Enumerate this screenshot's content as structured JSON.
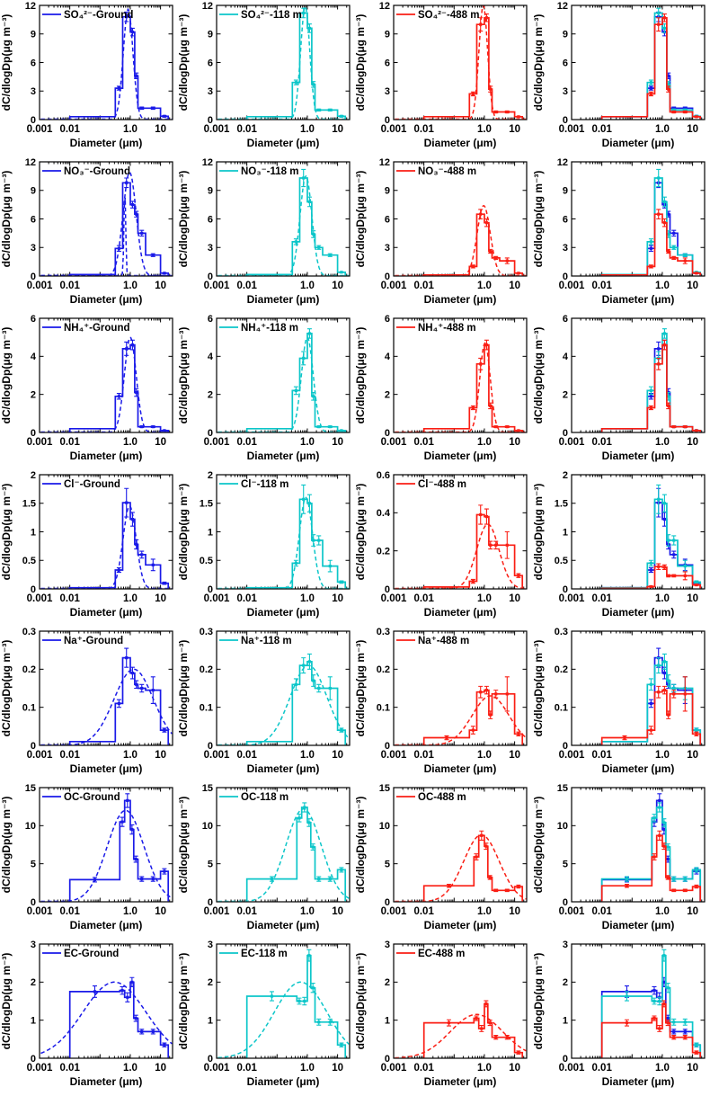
{
  "page": {
    "background": "#ffffff"
  },
  "chart_data": {
    "type": "line",
    "subtype": "size-distribution-histogram-grid",
    "grid": {
      "rows": 7,
      "cols": 4
    },
    "legend_position": "top-left-inside",
    "gridlines": false,
    "xlabel": "Diameter (μm)",
    "ylabel": "dC/dlogDp(μg m⁻³)",
    "x": {
      "scale": "log",
      "lim": [
        0.001,
        25
      ],
      "ticks": [
        {
          "v": 0.001,
          "t": "0.001"
        },
        {
          "v": 0.01,
          "t": "0.01"
        },
        {
          "v": 1,
          "t": "1.0"
        },
        {
          "v": 10,
          "t": "10"
        }
      ]
    },
    "colors": {
      "ground": "#1A1AE8",
      "h118": "#0CC6C9",
      "h488": "#FA1E14"
    },
    "col_keys": [
      "ground",
      "118m",
      "488m",
      "combined"
    ],
    "rows": [
      {
        "species": "SO₄²⁻",
        "key": "so4",
        "ylim": [
          0,
          12
        ],
        "yticks": [
          [
            0,
            "0"
          ],
          [
            3,
            "3"
          ],
          [
            6,
            "6"
          ],
          [
            9,
            "9"
          ],
          [
            12,
            "12"
          ]
        ],
        "edges": [
          0.01,
          0.32,
          0.56,
          1.0,
          1.4,
          1.8,
          3.2,
          10,
          18
        ],
        "panels": [
          {
            "legend": "SO₄²⁻-Ground",
            "color": "#1A1AE8",
            "values": [
              0.3,
              3.3,
              10.8,
              9.2,
              4.6,
              1.2,
              1.2,
              0.35
            ],
            "err": [
              0,
              0.2,
              0.5,
              0.4,
              0.3,
              0.12,
              0.12,
              0.08
            ],
            "fit": [
              {
                "px": 0.85,
                "py": 11.6,
                "s": 0.37
              }
            ]
          },
          {
            "legend": "SO₄²⁻-118 m",
            "color": "#0CC6C9",
            "values": [
              0.3,
              3.9,
              11.2,
              9.6,
              3.7,
              1.0,
              1.0,
              0.35
            ],
            "err": [
              0,
              0.25,
              0.5,
              0.45,
              0.3,
              0.1,
              0.1,
              0.08
            ],
            "fit": [
              {
                "px": 0.85,
                "py": 11.9,
                "s": 0.35
              }
            ]
          },
          {
            "legend": "SO₄²⁻-488 m",
            "color": "#FA1E14",
            "values": [
              0.3,
              2.7,
              10.0,
              10.7,
              3.2,
              0.8,
              0.8,
              0.3
            ],
            "err": [
              0,
              0.2,
              0.7,
              0.4,
              0.3,
              0.1,
              0.1,
              0.05
            ],
            "fit": [
              {
                "px": 0.92,
                "py": 12.0,
                "s": 0.33
              }
            ]
          }
        ]
      },
      {
        "species": "NO₃⁻",
        "key": "no3",
        "ylim": [
          0,
          12
        ],
        "yticks": [
          [
            0,
            "0"
          ],
          [
            3,
            "3"
          ],
          [
            6,
            "6"
          ],
          [
            9,
            "9"
          ],
          [
            12,
            "12"
          ]
        ],
        "edges": [
          0.01,
          0.32,
          0.56,
          1.0,
          1.4,
          1.8,
          3.2,
          10,
          18
        ],
        "panels": [
          {
            "legend": "NO₃⁻-Ground",
            "color": "#1A1AE8",
            "values": [
              0.15,
              2.9,
              9.8,
              7.5,
              6.5,
              4.5,
              2.2,
              0.3
            ],
            "err": [
              0,
              0.3,
              0.5,
              0.35,
              0.3,
              0.3,
              0.15,
              0.05
            ],
            "fit": [
              {
                "px": 0.66,
                "py": 8.8,
                "s": 0.07
              },
              {
                "px": 0.95,
                "py": 10.9,
                "s": 0.5
              }
            ]
          },
          {
            "legend": "NO₃⁻-118 m",
            "color": "#0CC6C9",
            "values": [
              0.15,
              3.6,
              10.3,
              7.8,
              4.4,
              3.0,
              2.2,
              0.4
            ],
            "err": [
              0,
              0.3,
              0.9,
              0.5,
              0.35,
              0.2,
              0.15,
              0.05
            ],
            "fit": [
              {
                "px": 0.9,
                "py": 10.5,
                "s": 0.45
              }
            ]
          },
          {
            "legend": "NO₃⁻-488 m",
            "color": "#FA1E14",
            "values": [
              0.1,
              1.0,
              6.5,
              5.6,
              2.6,
              1.9,
              1.6,
              0.3
            ],
            "err": [
              0,
              0.15,
              0.5,
              0.4,
              0.2,
              0.15,
              0.3,
              0.05
            ],
            "fit": [
              {
                "px": 0.95,
                "py": 7.4,
                "s": 0.5
              }
            ]
          }
        ]
      },
      {
        "species": "NH₄⁺",
        "key": "nh4",
        "ylim": [
          0,
          6
        ],
        "yticks": [
          [
            0,
            "0"
          ],
          [
            2,
            "2"
          ],
          [
            4,
            "4"
          ],
          [
            6,
            "6"
          ]
        ],
        "edges": [
          0.01,
          0.32,
          0.56,
          1.0,
          1.4,
          1.8,
          3.2,
          10,
          18
        ],
        "panels": [
          {
            "legend": "NH₄⁺-Ground",
            "color": "#1A1AE8",
            "values": [
              0.2,
              1.9,
              4.4,
              4.6,
              2.1,
              0.3,
              0.3,
              0.1
            ],
            "err": [
              0,
              0.15,
              0.35,
              0.25,
              0.2,
              0.04,
              0.04,
              0.02
            ],
            "fit": [
              {
                "px": 1.0,
                "py": 5.0,
                "s": 0.45
              }
            ]
          },
          {
            "legend": "NH₄⁺-118 m",
            "color": "#0CC6C9",
            "values": [
              0.2,
              2.2,
              3.9,
              5.2,
              1.9,
              0.3,
              0.3,
              0.1
            ],
            "err": [
              0,
              0.2,
              0.35,
              0.25,
              0.2,
              0.04,
              0.04,
              0.02
            ],
            "fit": [
              {
                "px": 1.0,
                "py": 5.0,
                "s": 0.45
              }
            ]
          },
          {
            "legend": "NH₄⁺-488 m",
            "color": "#FA1E14",
            "values": [
              0.2,
              1.3,
              3.6,
              4.6,
              1.4,
              0.3,
              0.3,
              0.1
            ],
            "err": [
              0,
              0.1,
              0.3,
              0.25,
              0.15,
              0.04,
              0.04,
              0.02
            ],
            "fit": [
              {
                "px": 1.05,
                "py": 4.7,
                "s": 0.4
              }
            ]
          }
        ]
      },
      {
        "species": "Cl⁻",
        "key": "cl",
        "ylim": [
          0,
          2
        ],
        "yticks": [
          [
            0,
            "0"
          ],
          [
            0.5,
            "0.5"
          ],
          [
            1,
            "1"
          ],
          [
            1.5,
            "1.5"
          ],
          [
            2,
            "2"
          ]
        ],
        "edges": [
          0.01,
          0.32,
          0.56,
          1.0,
          1.4,
          1.8,
          3.2,
          10,
          18
        ],
        "panels": [
          {
            "legend": "Cl⁻-Ground",
            "color": "#1A1AE8",
            "values": [
              0.02,
              0.33,
              1.51,
              1.22,
              0.78,
              0.6,
              0.42,
              0.1
            ],
            "err": [
              0,
              0.04,
              0.25,
              0.12,
              0.08,
              0.06,
              0.1,
              0.02
            ],
            "fit": [
              {
                "px": 0.95,
                "py": 1.45,
                "s": 0.5
              }
            ]
          },
          {
            "legend": "Cl⁻-118 m",
            "color": "#0CC6C9",
            "values": [
              0.02,
              0.45,
              1.57,
              1.5,
              0.85,
              0.85,
              0.4,
              0.12
            ],
            "err": [
              0,
              0.05,
              0.25,
              0.15,
              0.1,
              0.08,
              0.1,
              0.02
            ],
            "fit": [
              {
                "px": 0.9,
                "py": 1.6,
                "s": 0.5
              }
            ]
          },
          {
            "legend": "Cl⁻-488 m",
            "color": "#FA1E14",
            "ylim": [
              0,
              0.6
            ],
            "yticks": [
              [
                0,
                "0"
              ],
              [
                0.2,
                "0.2"
              ],
              [
                0.4,
                "0.4"
              ],
              [
                0.6,
                "0.6"
              ]
            ],
            "values": [
              0.01,
              0.04,
              0.39,
              0.38,
              0.23,
              0.23,
              0.23,
              0.07
            ],
            "err": [
              0,
              0.01,
              0.05,
              0.04,
              0.02,
              0.02,
              0.07,
              0.01
            ],
            "fit": [
              {
                "px": 1.3,
                "py": 0.34,
                "s": 0.85
              }
            ]
          }
        ]
      },
      {
        "species": "Na⁺",
        "key": "na",
        "ylim": [
          0,
          0.3
        ],
        "yticks": [
          [
            0,
            "0"
          ],
          [
            0.1,
            "0.1"
          ],
          [
            0.2,
            "0.2"
          ],
          [
            0.3,
            "0.3"
          ]
        ],
        "edges": [
          0.01,
          0.32,
          0.56,
          1.0,
          1.4,
          1.8,
          3.2,
          10,
          18
        ],
        "panels": [
          {
            "legend": "Na⁺-Ground",
            "color": "#1A1AE8",
            "values": [
              0.01,
              0.11,
              0.23,
              0.19,
              0.16,
              0.15,
              0.145,
              0.04
            ],
            "err": [
              0,
              0.01,
              0.025,
              0.015,
              0.01,
              0.01,
              0.035,
              0.005
            ],
            "fit": [
              {
                "px": 1.3,
                "py": 0.2,
                "s": 1.5
              }
            ]
          },
          {
            "legend": "Na⁺-118 m",
            "color": "#0CC6C9",
            "values": [
              0.01,
              0.16,
              0.21,
              0.22,
              0.17,
              0.15,
              0.15,
              0.04
            ],
            "err": [
              0,
              0.015,
              0.02,
              0.02,
              0.015,
              0.01,
              0.03,
              0.005
            ],
            "fit": [
              {
                "px": 1.1,
                "py": 0.21,
                "s": 1.4
              }
            ]
          },
          {
            "legend": "Na⁺-488 m",
            "color": "#FA1E14",
            "values": [
              0.02,
              0.04,
              0.14,
              0.145,
              0.08,
              0.135,
              0.135,
              0.03
            ],
            "err": [
              0.005,
              0.01,
              0.015,
              0.01,
              0.01,
              0.01,
              0.045,
              0.005
            ],
            "fit": [
              {
                "px": 1.6,
                "py": 0.13,
                "s": 1.4
              }
            ]
          }
        ]
      },
      {
        "species": "OC",
        "key": "oc",
        "ylim": [
          0,
          15
        ],
        "yticks": [
          [
            0,
            "0"
          ],
          [
            5,
            "5"
          ],
          [
            10,
            "10"
          ],
          [
            15,
            "15"
          ]
        ],
        "edges": [
          0.01,
          0.45,
          0.65,
          1.0,
          1.3,
          1.8,
          3.2,
          10,
          18
        ],
        "panels": [
          {
            "legend": "OC-Ground",
            "color": "#1A1AE8",
            "values": [
              2.9,
              10.5,
              13.3,
              9.5,
              5.6,
              3.0,
              3.0,
              4.0
            ],
            "err": [
              0.3,
              0.6,
              0.9,
              0.6,
              0.4,
              0.3,
              0.3,
              0.35
            ],
            "fit": [
              {
                "px": 0.7,
                "py": 12.0,
                "s": 1.4
              }
            ]
          },
          {
            "legend": "OC-118 m",
            "color": "#0CC6C9",
            "values": [
              3.0,
              11.0,
              12.4,
              10.4,
              7.2,
              3.0,
              3.0,
              4.2
            ],
            "err": [
              0.3,
              0.5,
              0.6,
              0.5,
              0.4,
              0.3,
              0.3,
              0.3
            ],
            "fit": [
              {
                "px": 0.75,
                "py": 12.2,
                "s": 1.35
              }
            ]
          },
          {
            "legend": "OC-488 m",
            "color": "#FA1E14",
            "values": [
              2.1,
              5.9,
              8.7,
              7.3,
              3.2,
              1.5,
              1.5,
              2.0
            ],
            "err": [
              0.2,
              0.4,
              0.6,
              0.4,
              0.25,
              0.15,
              0.15,
              0.2
            ],
            "fit": [
              {
                "px": 0.8,
                "py": 8.8,
                "s": 1.35
              }
            ]
          }
        ]
      },
      {
        "species": "EC",
        "key": "ec",
        "ylim": [
          0,
          3
        ],
        "yticks": [
          [
            0,
            "0"
          ],
          [
            1,
            "1"
          ],
          [
            2,
            "2"
          ],
          [
            3,
            "3"
          ]
        ],
        "edges": [
          0.01,
          0.45,
          0.65,
          1.0,
          1.3,
          1.8,
          3.2,
          10,
          18
        ],
        "panels": [
          {
            "legend": "EC-Ground",
            "color": "#1A1AE8",
            "values": [
              1.75,
              1.78,
              1.6,
              2.0,
              1.05,
              0.7,
              0.7,
              0.35
            ],
            "err": [
              0.15,
              0.1,
              0.12,
              0.12,
              0.08,
              0.06,
              0.06,
              0.05
            ],
            "fit": [
              {
                "px": 0.3,
                "py": 2.0,
                "s": 2.4
              }
            ]
          },
          {
            "legend": "EC-118 m",
            "color": "#0CC6C9",
            "values": [
              1.63,
              1.5,
              1.5,
              2.7,
              1.85,
              0.95,
              0.95,
              0.35
            ],
            "err": [
              0.12,
              0.08,
              0.1,
              0.15,
              0.12,
              0.08,
              0.08,
              0.05
            ],
            "fit": [
              {
                "px": 0.6,
                "py": 2.0,
                "s": 2.0
              }
            ]
          },
          {
            "legend": "EC-488 m",
            "color": "#FA1E14",
            "values": [
              0.93,
              1.05,
              0.78,
              1.43,
              0.93,
              0.55,
              0.55,
              0.15
            ],
            "err": [
              0.08,
              0.06,
              0.08,
              0.08,
              0.07,
              0.05,
              0.05,
              0.04
            ],
            "fit": [
              {
                "px": 0.55,
                "py": 1.15,
                "s": 2.0
              }
            ]
          }
        ]
      }
    ]
  }
}
